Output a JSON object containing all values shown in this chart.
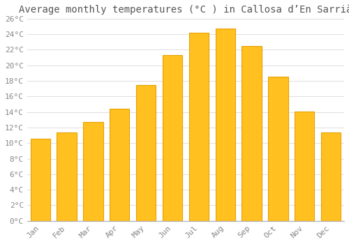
{
  "title": "Average monthly temperatures (°C ) in Callosa d’En Sarrià",
  "months": [
    "Jan",
    "Feb",
    "Mar",
    "Apr",
    "May",
    "Jun",
    "Jul",
    "Aug",
    "Sep",
    "Oct",
    "Nov",
    "Dec"
  ],
  "values": [
    10.6,
    11.4,
    12.7,
    14.4,
    17.5,
    21.3,
    24.2,
    24.7,
    22.5,
    18.5,
    14.1,
    11.4
  ],
  "bar_color": "#FFC020",
  "bar_edge_color": "#E8A000",
  "background_color": "#FFFFFF",
  "grid_color": "#DDDDDD",
  "ylim": [
    0,
    26
  ],
  "yticks": [
    0,
    2,
    4,
    6,
    8,
    10,
    12,
    14,
    16,
    18,
    20,
    22,
    24,
    26
  ],
  "title_fontsize": 10,
  "tick_fontsize": 8,
  "tick_font_color": "#888888",
  "title_color": "#555555"
}
